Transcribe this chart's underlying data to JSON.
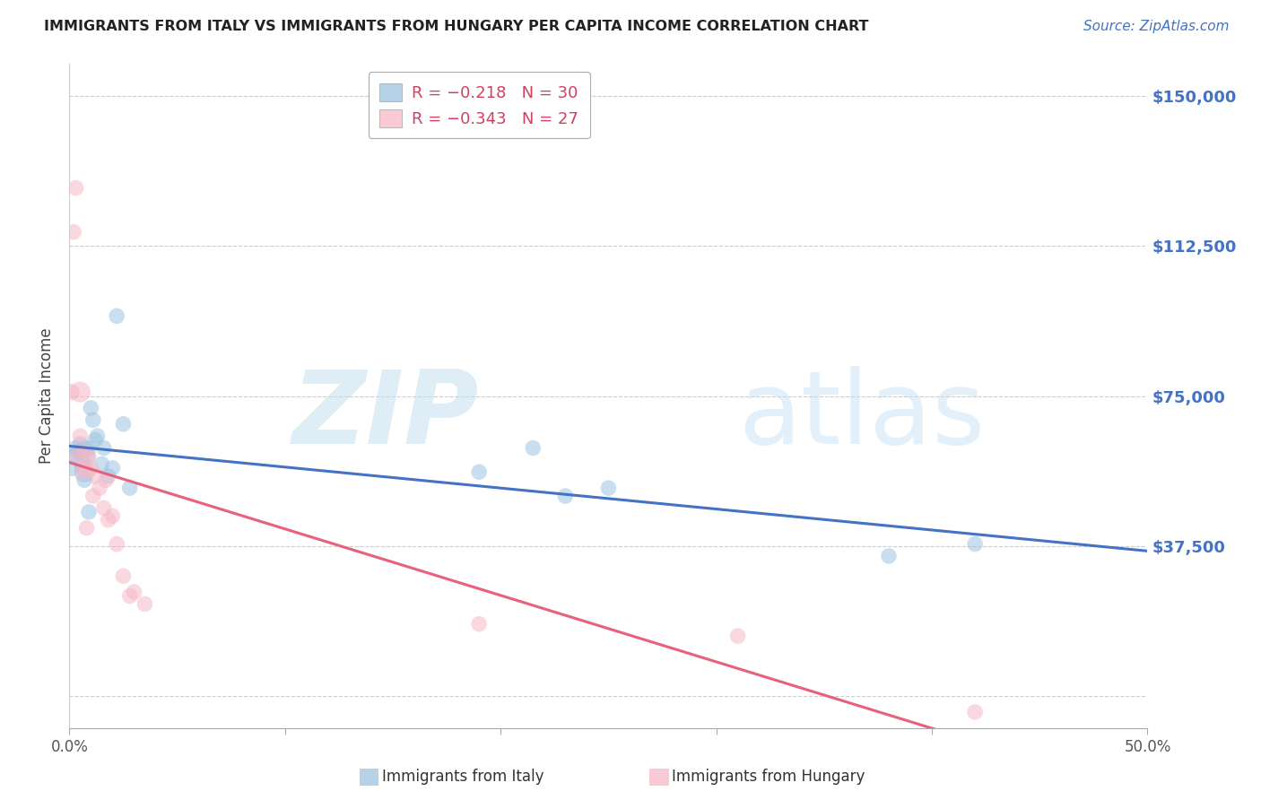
{
  "title": "IMMIGRANTS FROM ITALY VS IMMIGRANTS FROM HUNGARY PER CAPITA INCOME CORRELATION CHART",
  "source": "Source: ZipAtlas.com",
  "ylabel": "Per Capita Income",
  "ytick_vals": [
    0,
    37500,
    75000,
    112500,
    150000
  ],
  "ytick_labels": [
    "",
    "$37,500",
    "$75,000",
    "$112,500",
    "$150,000"
  ],
  "ylim": [
    -8000,
    158000
  ],
  "xlim": [
    0.0,
    0.5
  ],
  "legend_label_italy": "Immigrants from Italy",
  "legend_label_hungary": "Immigrants from Hungary",
  "watermark_zip": "ZIP",
  "watermark_atlas": "atlas",
  "italy_color": "#9ec4e0",
  "hungary_color": "#f7b8c8",
  "italy_line_color": "#4472c4",
  "hungary_line_color": "#e8607a",
  "right_label_color": "#4472c4",
  "background_color": "#ffffff",
  "grid_color": "#cccccc",
  "italy_scatter_x": [
    0.001,
    0.002,
    0.003,
    0.004,
    0.005,
    0.006,
    0.006,
    0.007,
    0.007,
    0.008,
    0.009,
    0.01,
    0.011,
    0.012,
    0.013,
    0.015,
    0.016,
    0.018,
    0.02,
    0.022,
    0.025,
    0.028,
    0.19,
    0.215,
    0.23,
    0.25,
    0.38,
    0.42,
    0.007,
    0.009
  ],
  "italy_scatter_y": [
    57000,
    60000,
    62000,
    61000,
    63000,
    58000,
    61000,
    56000,
    62000,
    60000,
    62000,
    72000,
    69000,
    64000,
    65000,
    58000,
    62000,
    55000,
    57000,
    95000,
    68000,
    52000,
    56000,
    62000,
    50000,
    52000,
    35000,
    38000,
    54000,
    46000
  ],
  "hungary_scatter_x": [
    0.001,
    0.002,
    0.003,
    0.004,
    0.005,
    0.006,
    0.007,
    0.008,
    0.009,
    0.01,
    0.011,
    0.012,
    0.014,
    0.016,
    0.017,
    0.018,
    0.02,
    0.022,
    0.025,
    0.028,
    0.03,
    0.035,
    0.19,
    0.31,
    0.42,
    0.005,
    0.008
  ],
  "hungary_scatter_y": [
    76000,
    116000,
    127000,
    60000,
    65000,
    56000,
    61000,
    57000,
    60000,
    57000,
    50000,
    55000,
    52000,
    47000,
    54000,
    44000,
    45000,
    38000,
    30000,
    25000,
    26000,
    23000,
    18000,
    15000,
    -4000,
    76000,
    42000
  ],
  "italy_scatter_sizes": [
    180,
    160,
    160,
    160,
    160,
    200,
    160,
    280,
    160,
    200,
    160,
    160,
    160,
    160,
    160,
    160,
    160,
    160,
    160,
    160,
    160,
    160,
    160,
    160,
    160,
    160,
    160,
    160,
    160,
    160
  ],
  "hungary_scatter_sizes": [
    180,
    160,
    160,
    160,
    160,
    160,
    160,
    160,
    160,
    160,
    160,
    160,
    160,
    160,
    160,
    160,
    160,
    160,
    160,
    160,
    160,
    160,
    160,
    160,
    160,
    280,
    160
  ]
}
